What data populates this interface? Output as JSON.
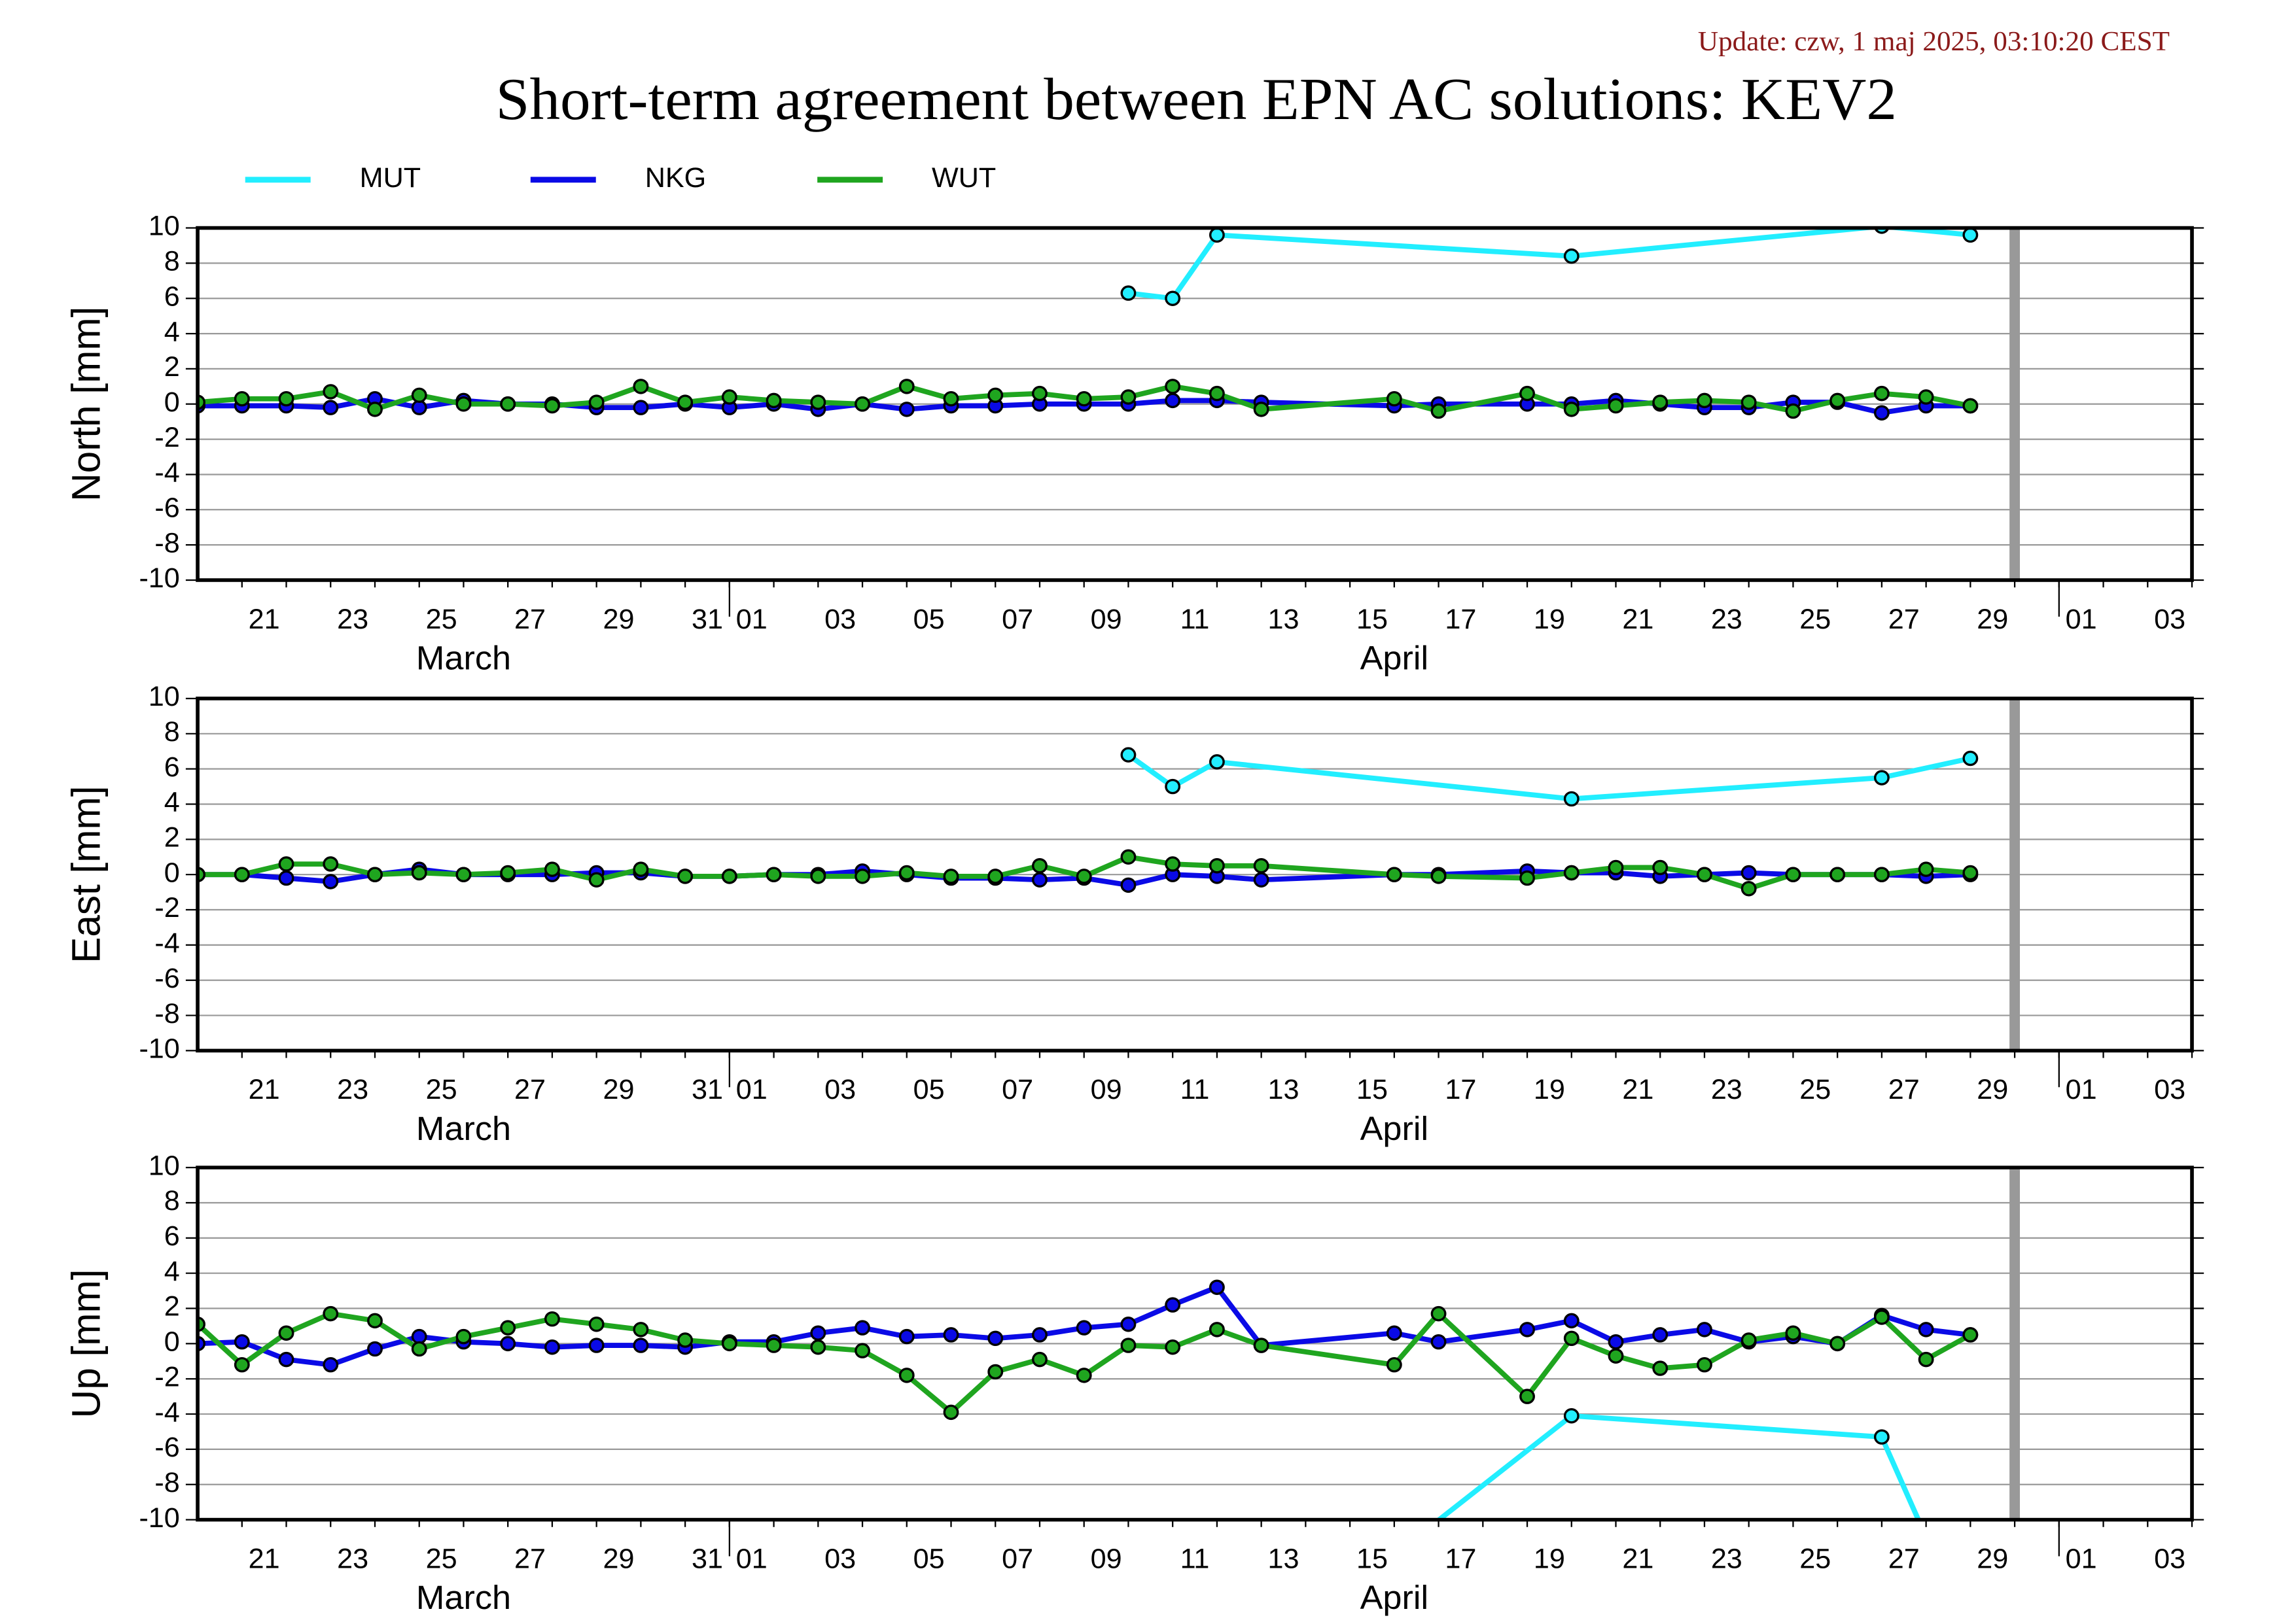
{
  "update": "Update: czw, 1 maj 2025, 03:10:20 CEST",
  "title": "Short-term agreement between EPN AC solutions: KEV2",
  "months": {
    "03": "March",
    "04": "April"
  },
  "vline": "04-30",
  "xlim": [
    "03-20",
    "05-04"
  ],
  "xticks": [
    {
      "value": "03-21",
      "label": "21"
    },
    {
      "value": "03-23",
      "label": "23"
    },
    {
      "value": "03-25",
      "label": "25"
    },
    {
      "value": "03-27",
      "label": "27"
    },
    {
      "value": "03-29",
      "label": "29"
    },
    {
      "value": "03-31",
      "label": "31"
    },
    {
      "value": "04-01",
      "label": "01"
    },
    {
      "value": "04-03",
      "label": "03"
    },
    {
      "value": "04-05",
      "label": "05"
    },
    {
      "value": "04-07",
      "label": "07"
    },
    {
      "value": "04-09",
      "label": "09"
    },
    {
      "value": "04-11",
      "label": "11"
    },
    {
      "value": "04-13",
      "label": "13"
    },
    {
      "value": "04-15",
      "label": "15"
    },
    {
      "value": "04-17",
      "label": "17"
    },
    {
      "value": "04-19",
      "label": "19"
    },
    {
      "value": "04-21",
      "label": "21"
    },
    {
      "value": "04-23",
      "label": "23"
    },
    {
      "value": "04-25",
      "label": "25"
    },
    {
      "value": "04-27",
      "label": "27"
    },
    {
      "value": "04-29",
      "label": "29"
    },
    {
      "value": "05-01",
      "label": "01"
    },
    {
      "value": "05-03",
      "label": "03"
    }
  ],
  "chart_data": [
    {
      "type": "line",
      "ylabel": "North [mm]",
      "ylim": [
        -10,
        10
      ],
      "yticks": [
        -10,
        -8,
        -6,
        -4,
        -2,
        0,
        2,
        4,
        6,
        8,
        10
      ],
      "grid": true,
      "x": [
        "03-20",
        "03-21",
        "03-22",
        "03-23",
        "03-24",
        "03-25",
        "03-26",
        "03-27",
        "03-28",
        "03-29",
        "03-30",
        "03-31",
        "04-01",
        "04-02",
        "04-03",
        "04-04",
        "04-05",
        "04-06",
        "04-07",
        "04-08",
        "04-09",
        "04-10",
        "04-11",
        "04-12",
        "04-13",
        "04-16",
        "04-17",
        "04-19",
        "04-20",
        "04-21",
        "04-22",
        "04-23",
        "04-24",
        "04-25",
        "04-26",
        "04-27",
        "04-28",
        "04-29"
      ],
      "series": [
        {
          "name": "MUT",
          "color": "#22eeff",
          "x": [
            "04-10",
            "04-11",
            "04-12",
            "04-20",
            "04-27",
            "04-29"
          ],
          "values": [
            6.3,
            6.0,
            9.6,
            8.4,
            10.1,
            9.6
          ]
        },
        {
          "name": "NKG",
          "color": "#0a0ae6",
          "values": [
            -0.1,
            -0.1,
            -0.1,
            -0.2,
            0.3,
            -0.2,
            0.2,
            0,
            0,
            -0.2,
            -0.2,
            0,
            -0.2,
            0,
            -0.3,
            0,
            -0.3,
            -0.1,
            -0.1,
            0,
            0,
            0,
            0.2,
            0.2,
            0.1,
            -0.1,
            0,
            0,
            0,
            0.2,
            0,
            -0.2,
            -0.2,
            0.1,
            0.1,
            -0.5,
            -0.1,
            -0.1
          ]
        },
        {
          "name": "WUT",
          "color": "#1fa51f",
          "values": [
            0.1,
            0.3,
            0.3,
            0.7,
            -0.3,
            0.5,
            0,
            0,
            -0.1,
            0.1,
            1.0,
            0.1,
            0.4,
            0.2,
            0.1,
            0,
            1.0,
            0.3,
            0.5,
            0.6,
            0.3,
            0.4,
            1.0,
            0.6,
            -0.3,
            0.3,
            -0.4,
            0.6,
            -0.3,
            -0.1,
            0.1,
            0.2,
            0.1,
            -0.4,
            0.2,
            0.6,
            0.4,
            -0.1
          ]
        }
      ]
    },
    {
      "type": "line",
      "ylabel": "East [mm]",
      "ylim": [
        -10,
        10
      ],
      "yticks": [
        -10,
        -8,
        -6,
        -4,
        -2,
        0,
        2,
        4,
        6,
        8,
        10
      ],
      "grid": true,
      "x": [
        "03-20",
        "03-21",
        "03-22",
        "03-23",
        "03-24",
        "03-25",
        "03-26",
        "03-27",
        "03-28",
        "03-29",
        "03-30",
        "03-31",
        "04-01",
        "04-02",
        "04-03",
        "04-04",
        "04-05",
        "04-06",
        "04-07",
        "04-08",
        "04-09",
        "04-10",
        "04-11",
        "04-12",
        "04-13",
        "04-16",
        "04-17",
        "04-19",
        "04-20",
        "04-21",
        "04-22",
        "04-23",
        "04-24",
        "04-25",
        "04-26",
        "04-27",
        "04-28",
        "04-29"
      ],
      "series": [
        {
          "name": "MUT",
          "color": "#22eeff",
          "x": [
            "04-10",
            "04-11",
            "04-12",
            "04-20",
            "04-27",
            "04-29"
          ],
          "values": [
            6.8,
            5.0,
            6.4,
            4.3,
            5.5,
            6.6
          ]
        },
        {
          "name": "NKG",
          "color": "#0a0ae6",
          "values": [
            0,
            0,
            -0.2,
            -0.4,
            0,
            0.3,
            0,
            0,
            0,
            0.1,
            0.1,
            -0.1,
            -0.1,
            0,
            0,
            0.2,
            0,
            -0.2,
            -0.2,
            -0.3,
            -0.2,
            -0.6,
            0,
            -0.1,
            -0.3,
            0,
            0,
            0.2,
            0.1,
            0.1,
            -0.1,
            0,
            0.1,
            0,
            0,
            0,
            -0.1,
            0
          ]
        },
        {
          "name": "WUT",
          "color": "#1fa51f",
          "values": [
            0,
            0,
            0.6,
            0.6,
            0,
            0.1,
            0,
            0.1,
            0.3,
            -0.3,
            0.3,
            -0.1,
            -0.1,
            0,
            -0.1,
            -0.1,
            0.1,
            -0.1,
            -0.1,
            0.5,
            -0.1,
            1.0,
            0.6,
            0.5,
            0.5,
            0,
            -0.1,
            -0.2,
            0.1,
            0.4,
            0.4,
            0,
            -0.8,
            0,
            0,
            0,
            0.3,
            0.1
          ]
        }
      ]
    },
    {
      "type": "line",
      "ylabel": "Up [mm]",
      "ylim": [
        -10,
        10
      ],
      "yticks": [
        -10,
        -8,
        -6,
        -4,
        -2,
        0,
        2,
        4,
        6,
        8,
        10
      ],
      "grid": true,
      "x": [
        "03-20",
        "03-21",
        "03-22",
        "03-23",
        "03-24",
        "03-25",
        "03-26",
        "03-27",
        "03-28",
        "03-29",
        "03-30",
        "03-31",
        "04-01",
        "04-02",
        "04-03",
        "04-04",
        "04-05",
        "04-06",
        "04-07",
        "04-08",
        "04-09",
        "04-10",
        "04-11",
        "04-12",
        "04-13",
        "04-16",
        "04-17",
        "04-19",
        "04-20",
        "04-21",
        "04-22",
        "04-23",
        "04-24",
        "04-25",
        "04-26",
        "04-27",
        "04-28",
        "04-29"
      ],
      "series": [
        {
          "name": "MUT",
          "color": "#22eeff",
          "x": [
            "04-16",
            "04-20",
            "04-27",
            "04-28"
          ],
          "values": [
            -12,
            -4.1,
            -5.3,
            -11
          ]
        },
        {
          "name": "NKG",
          "color": "#0a0ae6",
          "values": [
            0,
            0.1,
            -0.9,
            -1.2,
            -0.3,
            0.4,
            0.1,
            0,
            -0.2,
            -0.1,
            -0.1,
            -0.2,
            0.1,
            0.1,
            0.6,
            0.9,
            0.4,
            0.5,
            0.3,
            0.5,
            0.9,
            1.1,
            2.2,
            3.2,
            -0.1,
            0.6,
            0.1,
            0.8,
            1.3,
            0.1,
            0.5,
            0.8,
            0.1,
            0.4,
            0,
            1.6,
            0.8,
            0.5
          ]
        },
        {
          "name": "WUT",
          "color": "#1fa51f",
          "values": [
            1.1,
            -1.2,
            0.6,
            1.7,
            1.3,
            -0.3,
            0.4,
            0.9,
            1.4,
            1.1,
            0.8,
            0.2,
            0,
            -0.1,
            -0.2,
            -0.4,
            -1.8,
            -3.9,
            -1.6,
            -0.9,
            -1.8,
            -0.1,
            -0.2,
            0.8,
            -0.1,
            -1.2,
            1.7,
            -3.0,
            0.3,
            -0.7,
            -1.4,
            -1.2,
            0.2,
            0.6,
            0,
            1.5,
            -0.9,
            0.5
          ]
        }
      ]
    }
  ]
}
